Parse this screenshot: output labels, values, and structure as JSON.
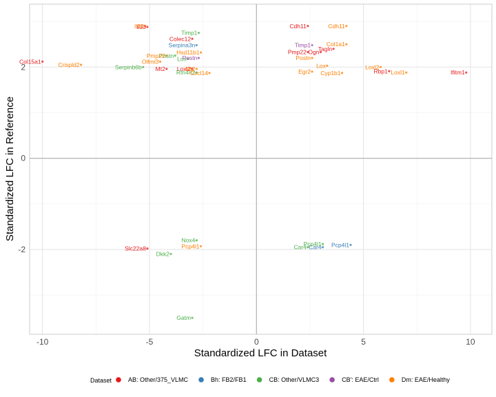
{
  "chart_data": {
    "type": "scatter",
    "xlabel": "Standardized LFC in Dataset",
    "ylabel": "Standardized LFC in Reference",
    "xlim": [
      -10.6,
      11.0
    ],
    "ylim": [
      -3.86,
      3.38
    ],
    "xticks": [
      -10,
      -5,
      0,
      5,
      10
    ],
    "yticks": [
      -2,
      0,
      2
    ],
    "grid": true,
    "legend_position": "bottom",
    "legend_title": "Dataset",
    "series": [
      {
        "key": "AB",
        "name": "AB: Other/375_VLMC",
        "color": "#E41A1C",
        "points": [
          {
            "x": -5.1,
            "y": 2.88,
            "label": "Il33"
          },
          {
            "x": -10.0,
            "y": 2.12,
            "label": "Col15a1"
          },
          {
            "x": -3.0,
            "y": 2.62,
            "label": "Colec12"
          },
          {
            "x": -4.2,
            "y": 1.96,
            "label": "Mt2"
          },
          {
            "x": -3.0,
            "y": 1.96,
            "label": "Loxl2"
          },
          {
            "x": 2.4,
            "y": 2.9,
            "label": "Cdh11"
          },
          {
            "x": 2.4,
            "y": 2.33,
            "label": "Pmp22"
          },
          {
            "x": 3.0,
            "y": 2.33,
            "label": "Ogn"
          },
          {
            "x": 3.6,
            "y": 2.4,
            "label": "Tagln"
          },
          {
            "x": 6.2,
            "y": 1.91,
            "label": "Rbp1"
          },
          {
            "x": 9.8,
            "y": 1.88,
            "label": "Ifitm1"
          },
          {
            "x": -5.1,
            "y": -1.98,
            "label": "Slc22a8"
          }
        ]
      },
      {
        "key": "Bh",
        "name": "Bh: FB2/FB1",
        "color": "#377EB8",
        "points": [
          {
            "x": -2.8,
            "y": 2.48,
            "label": "Serpina3n"
          },
          {
            "x": 4.4,
            "y": -1.9,
            "label": "Pcp4l1"
          },
          {
            "x": 3.1,
            "y": -1.95,
            "label": "Car4"
          }
        ]
      },
      {
        "key": "CB",
        "name": "CB: Other/VLMC3",
        "color": "#4DAF4A",
        "points": [
          {
            "x": -2.7,
            "y": 2.75,
            "label": "Timp1"
          },
          {
            "x": -3.8,
            "y": 2.25,
            "label": "Postn"
          },
          {
            "x": -3.2,
            "y": 2.18,
            "label": "Lox"
          },
          {
            "x": -5.3,
            "y": 2.0,
            "label": "Serpinb6b"
          },
          {
            "x": -2.8,
            "y": 1.88,
            "label": "Rtn4rl2"
          },
          {
            "x": -2.8,
            "y": -1.8,
            "label": "Nox4"
          },
          {
            "x": -4.0,
            "y": -2.1,
            "label": "Dkk2"
          },
          {
            "x": -3.0,
            "y": -3.5,
            "label": "Gatm"
          },
          {
            "x": 3.1,
            "y": -1.88,
            "label": "Pcp4l1"
          },
          {
            "x": 2.4,
            "y": -1.95,
            "label": "Car4"
          }
        ]
      },
      {
        "key": "CBp",
        "name": "CB': EAE/Ctrl",
        "color": "#984EA3",
        "points": [
          {
            "x": 2.6,
            "y": 2.48,
            "label": "Timp1"
          },
          {
            "x": -2.7,
            "y": 2.2,
            "label": "Postn"
          }
        ]
      },
      {
        "key": "Dm",
        "name": "Dm: EAE/Healthy",
        "color": "#FF7F00",
        "points": [
          {
            "x": -5.2,
            "y": 2.9,
            "label": "Il33"
          },
          {
            "x": -8.2,
            "y": 2.05,
            "label": "Crispld2"
          },
          {
            "x": -4.2,
            "y": 2.25,
            "label": "Pmp22"
          },
          {
            "x": -4.5,
            "y": 2.12,
            "label": "Olfml3"
          },
          {
            "x": -2.6,
            "y": 2.32,
            "label": "Hsd11b1"
          },
          {
            "x": -2.8,
            "y": 1.96,
            "label": "Mt2"
          },
          {
            "x": -2.2,
            "y": 1.87,
            "label": "Cxcl14"
          },
          {
            "x": 4.2,
            "y": 2.9,
            "label": "Cdh11"
          },
          {
            "x": 4.2,
            "y": 2.5,
            "label": "Col1a1"
          },
          {
            "x": 2.6,
            "y": 2.2,
            "label": "Postn"
          },
          {
            "x": 3.3,
            "y": 2.03,
            "label": "Lox"
          },
          {
            "x": 2.6,
            "y": 1.9,
            "label": "Egr2"
          },
          {
            "x": 4.0,
            "y": 1.87,
            "label": "Cyp1b1"
          },
          {
            "x": 5.8,
            "y": 2.0,
            "label": "Loxl2"
          },
          {
            "x": 7.0,
            "y": 1.88,
            "label": "Loxl1"
          },
          {
            "x": -2.6,
            "y": -1.93,
            "label": "Pcp4l1"
          }
        ]
      }
    ]
  }
}
